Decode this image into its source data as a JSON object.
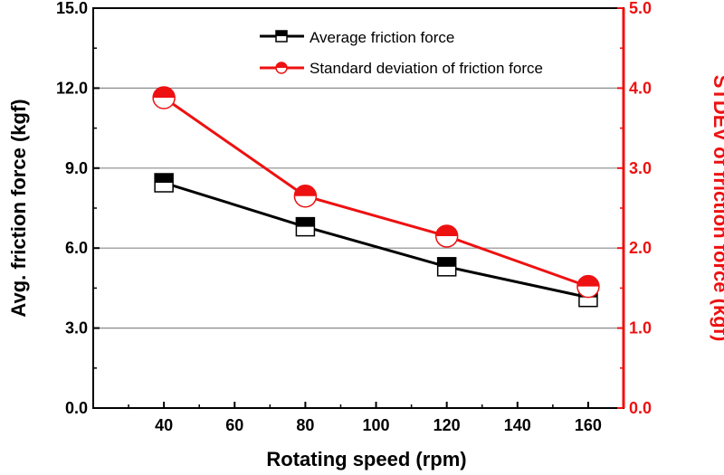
{
  "chart_data": {
    "type": "line",
    "x": [
      40,
      80,
      120,
      160
    ],
    "xlabel": "Rotating speed (rpm)",
    "xlim": [
      20,
      170
    ],
    "xticks": [
      40,
      60,
      80,
      100,
      120,
      140,
      160
    ],
    "xtick_labels": [
      "40",
      "60",
      "80",
      "100",
      "120",
      "140",
      "160"
    ],
    "grid": "horizontal",
    "legend_position": "top-center",
    "left_axis": {
      "label": "Avg. friction force (kgf)",
      "ylim": [
        0,
        15
      ],
      "ticks": [
        0,
        3,
        6,
        9,
        12,
        15
      ],
      "tick_labels": [
        "0.0",
        "3.0",
        "6.0",
        "9.0",
        "12.0",
        "15.0"
      ],
      "color": "#000000"
    },
    "right_axis": {
      "label": "STDEV of friction force (kgf)",
      "ylim": [
        0,
        5
      ],
      "ticks": [
        0,
        1,
        2,
        3,
        4,
        5
      ],
      "tick_labels": [
        "0.0",
        "1.0",
        "2.0",
        "3.0",
        "4.0",
        "5.0"
      ],
      "color": "#ee1111"
    },
    "series": [
      {
        "name": "Average friction force",
        "axis": "left",
        "marker": "half-filled-square",
        "color": "#000000",
        "values": [
          8.45,
          6.8,
          5.3,
          4.15
        ]
      },
      {
        "name": "Standard deviation of friction force",
        "axis": "right",
        "marker": "half-filled-circle",
        "color": "#ee1111",
        "values": [
          3.88,
          2.65,
          2.15,
          1.52
        ]
      }
    ]
  }
}
